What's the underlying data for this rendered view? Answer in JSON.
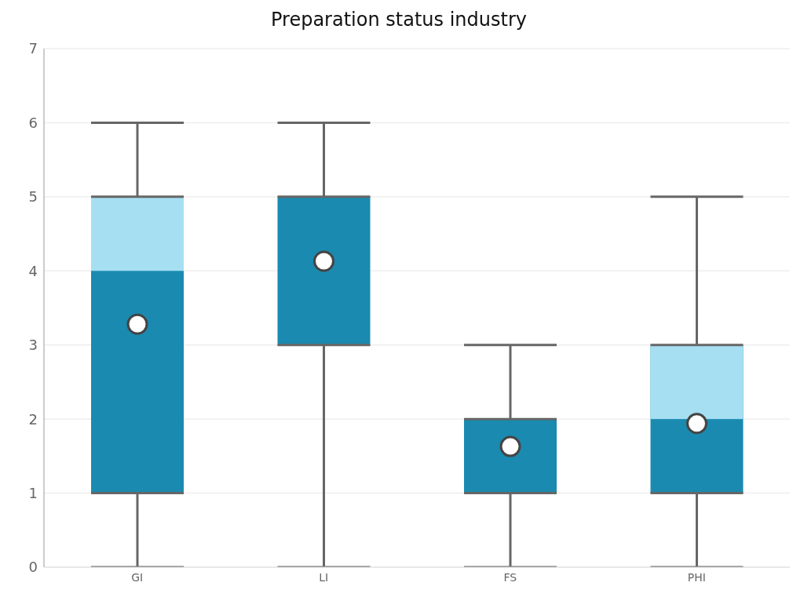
{
  "chart_data": {
    "type": "box",
    "title": "Preparation status industry",
    "categories": [
      "GI",
      "LI",
      "FS",
      "PHI"
    ],
    "series": [
      {
        "color": "#1a8ab0",
        "boxes": [
          {
            "low": 0,
            "q1": 1,
            "median": 4,
            "q3": 5,
            "high": 6,
            "mean": 3.28
          },
          {
            "low": 0,
            "q1": 3,
            "median": 5,
            "q3": 5,
            "high": 6,
            "mean": 4.13
          },
          {
            "low": 0,
            "q1": 1,
            "median": 2,
            "q3": 2,
            "high": 3,
            "mean": 1.63
          },
          {
            "low": 0,
            "q1": 1,
            "median": 2,
            "q3": 3,
            "high": 5,
            "mean": 1.94
          }
        ]
      }
    ],
    "ylim": [
      0,
      7
    ],
    "yticks": [
      0,
      1,
      2,
      3,
      4,
      5,
      6,
      7
    ],
    "grid": "y"
  }
}
